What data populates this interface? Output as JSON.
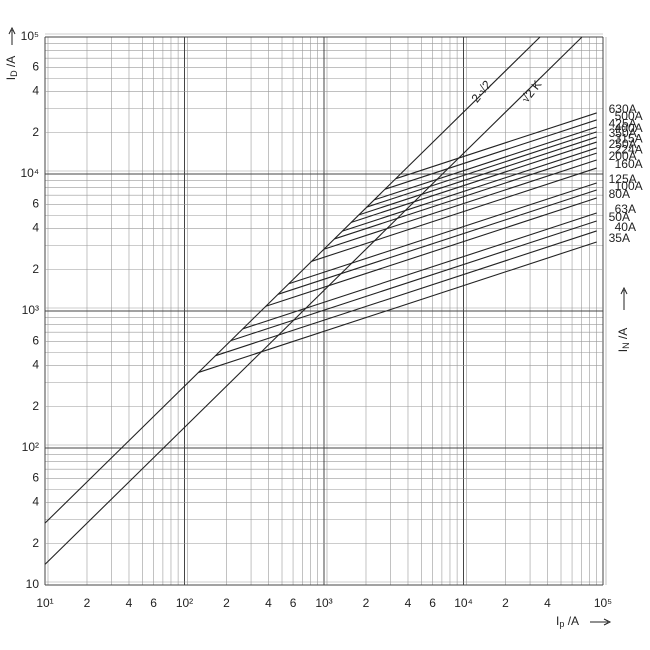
{
  "chart_data": {
    "type": "line",
    "log_x": true,
    "log_y": true,
    "grid": true,
    "minor_grid": true,
    "color": "#222222",
    "xlabel": {
      "symbol": "I",
      "subscript": "p",
      "unit": " /A"
    },
    "ylabel": {
      "symbol": "I",
      "subscript": "D",
      "unit": " /A"
    },
    "y2label": {
      "symbol": "I",
      "subscript": "N",
      "unit": " /A"
    },
    "xlim": [
      10,
      100000
    ],
    "ylim": [
      10,
      100000
    ],
    "xticks": [
      {
        "value": 10,
        "label": "10¹"
      },
      {
        "value": 20,
        "label": "2"
      },
      {
        "value": 40,
        "label": "4"
      },
      {
        "value": 60,
        "label": "6"
      },
      {
        "value": 100,
        "label": "10²"
      },
      {
        "value": 200,
        "label": "2"
      },
      {
        "value": 400,
        "label": "4"
      },
      {
        "value": 600,
        "label": "6"
      },
      {
        "value": 1000,
        "label": "10³"
      },
      {
        "value": 2000,
        "label": "2"
      },
      {
        "value": 4000,
        "label": "4"
      },
      {
        "value": 6000,
        "label": "6"
      },
      {
        "value": 10000,
        "label": "10⁴"
      },
      {
        "value": 20000,
        "label": "2"
      },
      {
        "value": 40000,
        "label": "4"
      },
      {
        "value": 100000,
        "label": "10⁵"
      }
    ],
    "yticks": [
      10,
      {
        "value": 20,
        "label": "2"
      },
      {
        "value": 40,
        "label": "4"
      },
      {
        "value": 60,
        "label": "6"
      },
      {
        "value": 100,
        "label": "10²"
      },
      {
        "value": 200,
        "label": "2"
      },
      {
        "value": 400,
        "label": "4"
      },
      {
        "value": 600,
        "label": "6"
      },
      {
        "value": 1000,
        "label": "10³"
      },
      {
        "value": 2000,
        "label": "2"
      },
      {
        "value": 4000,
        "label": "4"
      },
      {
        "value": 6000,
        "label": "6"
      },
      {
        "value": 10000,
        "label": "10⁴"
      },
      {
        "value": 20000,
        "label": "2"
      },
      {
        "value": 40000,
        "label": "4"
      },
      {
        "value": 60000,
        "label": "6"
      },
      {
        "value": 100000,
        "label": "10⁵"
      }
    ],
    "series": [
      {
        "name": "2·√2",
        "x": [
          10,
          35355
        ],
        "values": [
          28.28,
          100000
        ]
      },
      {
        "name": "√2 K",
        "x": [
          10,
          70711
        ],
        "values": [
          14.14,
          100000
        ]
      },
      {
        "name": "630A",
        "x": [
          3269,
          90000
        ],
        "values": [
          9245,
          27900
        ]
      },
      {
        "name": "500A",
        "x": [
          2740,
          90000
        ],
        "values": [
          7749,
          24800
        ]
      },
      {
        "name": "425A",
        "x": [
          2288,
          90000
        ],
        "values": [
          6471,
          22000
        ]
      },
      {
        "name": "400A",
        "x": [
          2029,
          90000
        ],
        "values": [
          5738,
          20300
        ]
      },
      {
        "name": "350A",
        "x": [
          1780,
          90000
        ],
        "values": [
          5034,
          18600
        ]
      },
      {
        "name": "315A",
        "x": [
          1569,
          90000
        ],
        "values": [
          4437,
          17100
        ]
      },
      {
        "name": "250A",
        "x": [
          1353,
          90000
        ],
        "values": [
          3826,
          15500
        ]
      },
      {
        "name": "224A",
        "x": [
          1187,
          90000
        ],
        "values": [
          3357,
          14200
        ]
      },
      {
        "name": "200A",
        "x": [
          998,
          90000
        ],
        "values": [
          2822,
          12650
        ]
      },
      {
        "name": "160A",
        "x": [
          815,
          90000
        ],
        "values": [
          2305,
          11050
        ]
      },
      {
        "name": "125A",
        "x": [
          559,
          90000
        ],
        "values": [
          1581,
          8600
        ]
      },
      {
        "name": "100A",
        "x": [
          468,
          90000
        ],
        "values": [
          1324,
          7640
        ]
      },
      {
        "name": "80A",
        "x": [
          383,
          90000
        ],
        "values": [
          1083,
          6680
        ]
      },
      {
        "name": "63A",
        "x": [
          262,
          90000
        ],
        "values": [
          741,
          5190
        ]
      },
      {
        "name": "50A",
        "x": [
          215,
          90000
        ],
        "values": [
          608,
          4540
        ]
      },
      {
        "name": "40A",
        "x": [
          167,
          90000
        ],
        "values": [
          472,
          3840
        ]
      },
      {
        "name": "35A",
        "x": [
          126,
          90000
        ],
        "values": [
          356,
          3190
        ]
      }
    ]
  }
}
